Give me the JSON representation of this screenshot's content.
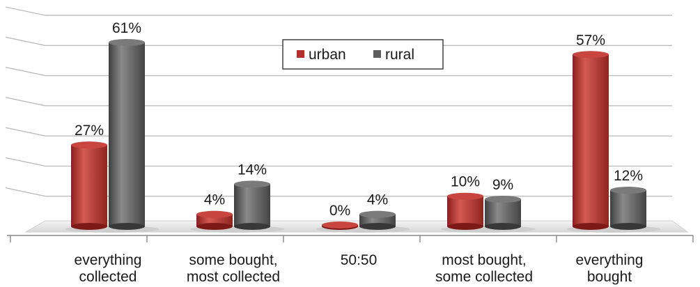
{
  "chart_data": {
    "type": "bar",
    "categories": [
      [
        "everything",
        "collected"
      ],
      [
        "some bought,",
        "most collected"
      ],
      [
        "50:50"
      ],
      [
        "most bought,",
        "some collected"
      ],
      [
        "everything",
        "bought"
      ]
    ],
    "series": [
      {
        "name": "urban",
        "color": "#b3312c",
        "values": [
          27,
          4,
          0,
          10,
          57
        ],
        "labels": [
          "27%",
          "4%",
          "0%",
          "10%",
          "57%"
        ]
      },
      {
        "name": "rural",
        "color": "#5e5e5e",
        "values": [
          61,
          14,
          4,
          9,
          12
        ],
        "labels": [
          "61%",
          "14%",
          "4%",
          "9%",
          "12%"
        ]
      }
    ],
    "ylim": [
      0,
      70
    ],
    "grid": true,
    "legend": "top-center",
    "title": "",
    "xlabel": "",
    "ylabel": ""
  }
}
